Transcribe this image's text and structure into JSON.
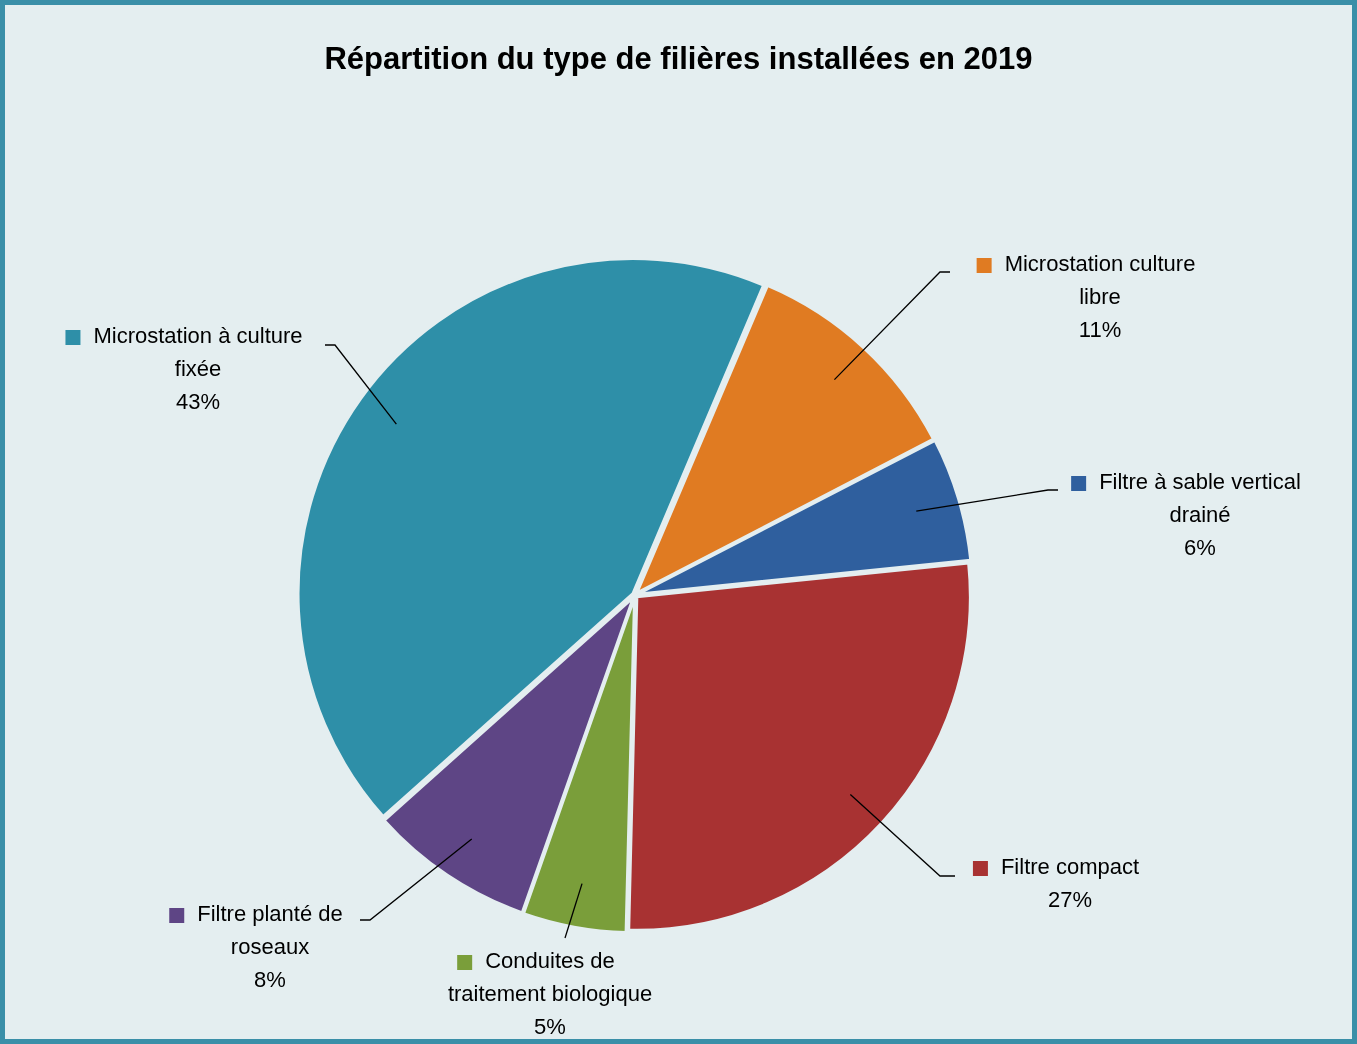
{
  "chart_data": {
    "type": "pie",
    "title": "Répartition du type de filières installées en 2019",
    "categories": [
      "Microstation culture libre",
      "Filtre à sable vertical drainé",
      "Filtre compact",
      "Conduites de traitement biologique",
      "Filtre planté de roseaux",
      "Microstation à culture fixée"
    ],
    "values": [
      11,
      6,
      27,
      5,
      8,
      43
    ],
    "colors": [
      "#e07b22",
      "#2f5f9e",
      "#a83232",
      "#7a9e3a",
      "#5e4585",
      "#2e8fa8"
    ],
    "value_labels": [
      "11%",
      "6%",
      "27%",
      "5%",
      "8%",
      "43%"
    ],
    "legend": "right"
  }
}
